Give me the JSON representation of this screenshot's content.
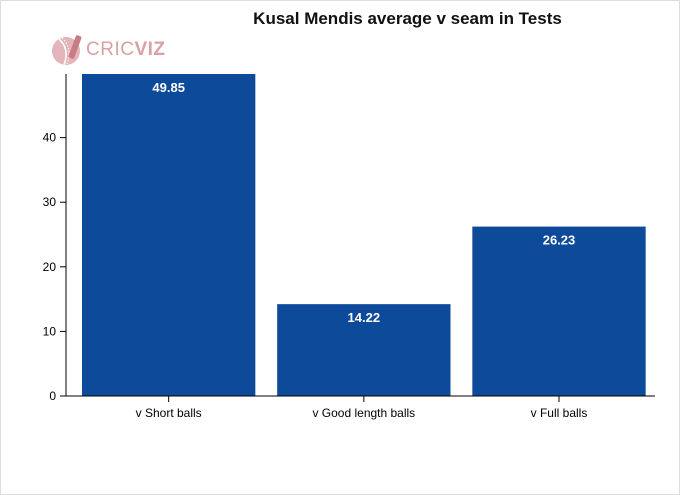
{
  "chart_data": {
    "type": "bar",
    "title": "Kusal Mendis average v seam in Tests",
    "categories": [
      "v Short balls",
      "v Good length balls",
      "v Full balls"
    ],
    "values": [
      49.85,
      14.22,
      26.23
    ],
    "value_labels": [
      "49.85",
      "14.22",
      "26.23"
    ],
    "xlabel": "",
    "ylabel": "",
    "ylim": [
      0,
      50
    ],
    "yticks": [
      0,
      10,
      20,
      30,
      40
    ],
    "grid": false,
    "bar_color": "#0e4a9a",
    "label_color": "#ffffff"
  },
  "logo": {
    "text_a": "CRIC",
    "text_b": "VIZ",
    "color": "#d9a0a6",
    "icon": "cricket-ball-bat-icon"
  }
}
